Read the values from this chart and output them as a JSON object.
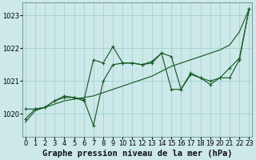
{
  "background_color": "#cce8e8",
  "grid_color": "#99cccc",
  "line_color": "#1a5c2a",
  "xlabel": "Graphe pression niveau de la mer (hPa)",
  "xlabel_fontsize": 7.5,
  "tick_fontsize": 6,
  "ylim": [
    1019.3,
    1023.4
  ],
  "xlim": [
    -0.3,
    23.3
  ],
  "yticks": [
    1020,
    1021,
    1022,
    1023
  ],
  "xticks": [
    0,
    1,
    2,
    3,
    4,
    5,
    6,
    7,
    8,
    9,
    10,
    11,
    12,
    13,
    14,
    15,
    16,
    17,
    18,
    19,
    20,
    21,
    22,
    23
  ],
  "line_smooth": [
    1019.75,
    1020.1,
    1020.2,
    1020.3,
    1020.4,
    1020.45,
    1020.5,
    1020.55,
    1020.65,
    1020.75,
    1020.85,
    1020.95,
    1021.05,
    1021.15,
    1021.3,
    1021.45,
    1021.55,
    1021.65,
    1021.75,
    1021.85,
    1021.95,
    1022.1,
    1022.5,
    1023.2
  ],
  "line_a": [
    1019.85,
    1020.15,
    1020.2,
    1020.4,
    1020.55,
    1020.5,
    1020.45,
    1019.65,
    1021.0,
    1021.5,
    1021.55,
    1021.55,
    1021.5,
    1021.6,
    1021.85,
    1021.75,
    1020.75,
    1021.25,
    1021.1,
    1021.0,
    1021.1,
    1021.4,
    1021.7,
    1023.2
  ],
  "line_b": [
    1020.15,
    1020.15,
    1020.2,
    1020.4,
    1020.5,
    1020.5,
    1020.4,
    1021.65,
    1021.55,
    1022.05,
    1021.55,
    1021.55,
    1021.5,
    1021.55,
    1021.85,
    1020.75,
    1020.75,
    1021.2,
    1021.1,
    1020.9,
    1021.1,
    1021.1,
    1021.65,
    1023.2
  ]
}
